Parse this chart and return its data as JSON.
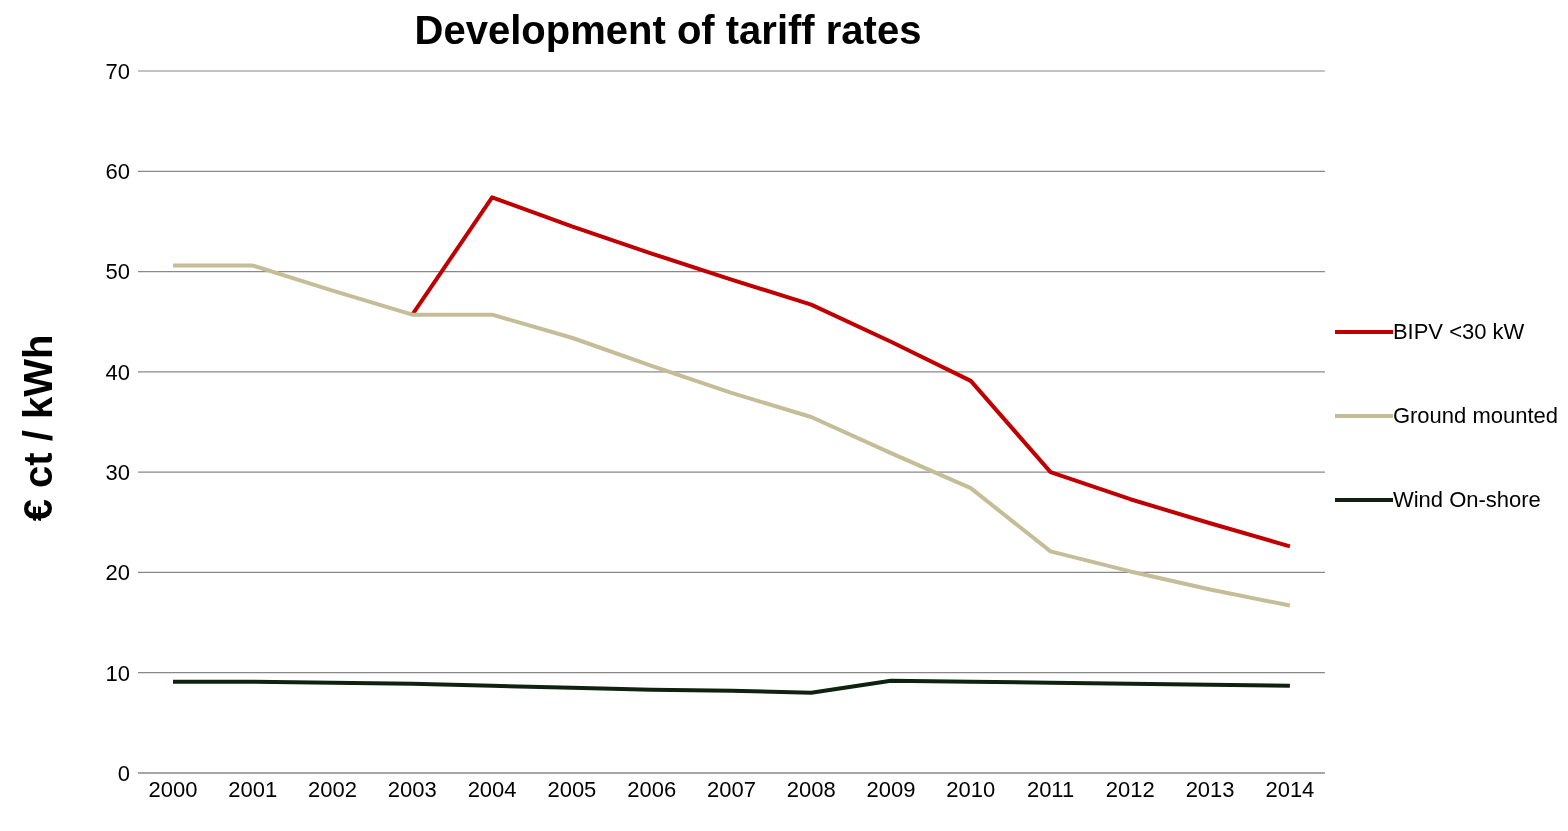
{
  "chart_data": {
    "type": "line",
    "title": "Development of tariff rates",
    "ylabel": "€ ct / kWh",
    "categories": [
      "2000",
      "2001",
      "2002",
      "2003",
      "2004",
      "2005",
      "2006",
      "2007",
      "2008",
      "2009",
      "2010",
      "2011",
      "2012",
      "2013",
      "2014"
    ],
    "series": [
      {
        "name": "BIPV <30 kW",
        "color": "#c00000",
        "values": [
          null,
          null,
          null,
          45.7,
          57.4,
          54.5,
          51.8,
          49.2,
          46.7,
          43.0,
          39.1,
          30.0,
          27.3,
          24.9,
          22.6
        ]
      },
      {
        "name": "Ground mounted",
        "color": "#c4bd97",
        "values": [
          50.6,
          50.6,
          48.1,
          45.7,
          45.7,
          43.4,
          40.6,
          37.9,
          35.5,
          31.9,
          28.4,
          22.1,
          20.1,
          18.3,
          16.7
        ]
      },
      {
        "name": "Wind On-shore",
        "color": "#0f2210",
        "values": [
          9.1,
          9.1,
          9.0,
          8.9,
          8.7,
          8.5,
          8.3,
          8.2,
          8.0,
          9.2,
          9.1,
          9.0,
          8.9,
          8.8,
          8.7
        ]
      }
    ],
    "ylim": [
      0,
      70
    ],
    "yticks": [
      0,
      10,
      20,
      30,
      40,
      50,
      60,
      70
    ],
    "grid": "y",
    "legend": "right",
    "marker": "none",
    "line_style": "solid"
  }
}
